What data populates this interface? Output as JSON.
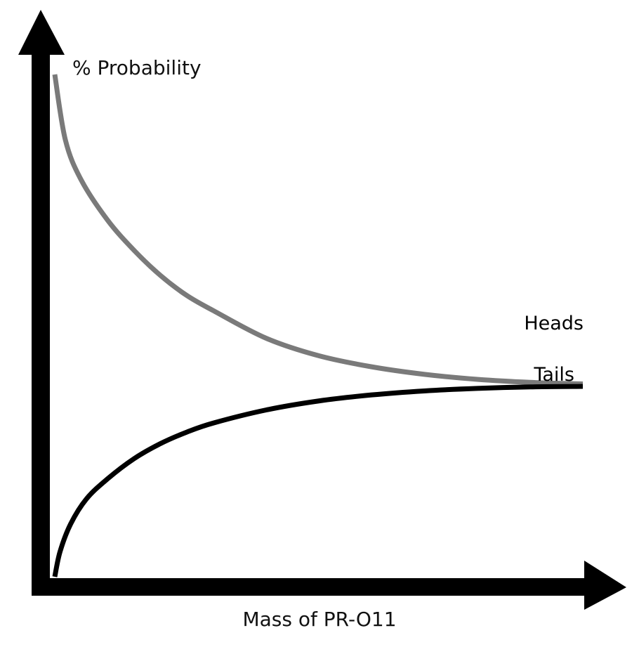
{
  "chart_data": {
    "type": "line",
    "title": "",
    "xlabel": "Mass of PR-O11",
    "ylabel": "% Probability",
    "xlim": [
      0,
      100
    ],
    "ylim": [
      0,
      100
    ],
    "grid": false,
    "legend": "none",
    "series": [
      {
        "name": "Heads",
        "color": "#7a7a7a",
        "x": [
          0,
          2,
          5,
          10,
          15,
          20,
          25,
          30,
          40,
          50,
          60,
          70,
          80,
          90,
          100
        ],
        "y": [
          100,
          87,
          79,
          71,
          65,
          60,
          56,
          53,
          47.5,
          44,
          41.8,
          40.3,
          39.3,
          38.7,
          38.4
        ]
      },
      {
        "name": "Tails",
        "color": "#000000",
        "x": [
          0,
          1,
          3,
          6,
          10,
          15,
          20,
          25,
          30,
          40,
          50,
          60,
          70,
          80,
          90,
          100
        ],
        "y": [
          0,
          5,
          10.5,
          15.5,
          19.5,
          23.5,
          26.5,
          28.8,
          30.6,
          33.2,
          35,
          36.2,
          37,
          37.5,
          37.8,
          37.9
        ]
      }
    ]
  }
}
